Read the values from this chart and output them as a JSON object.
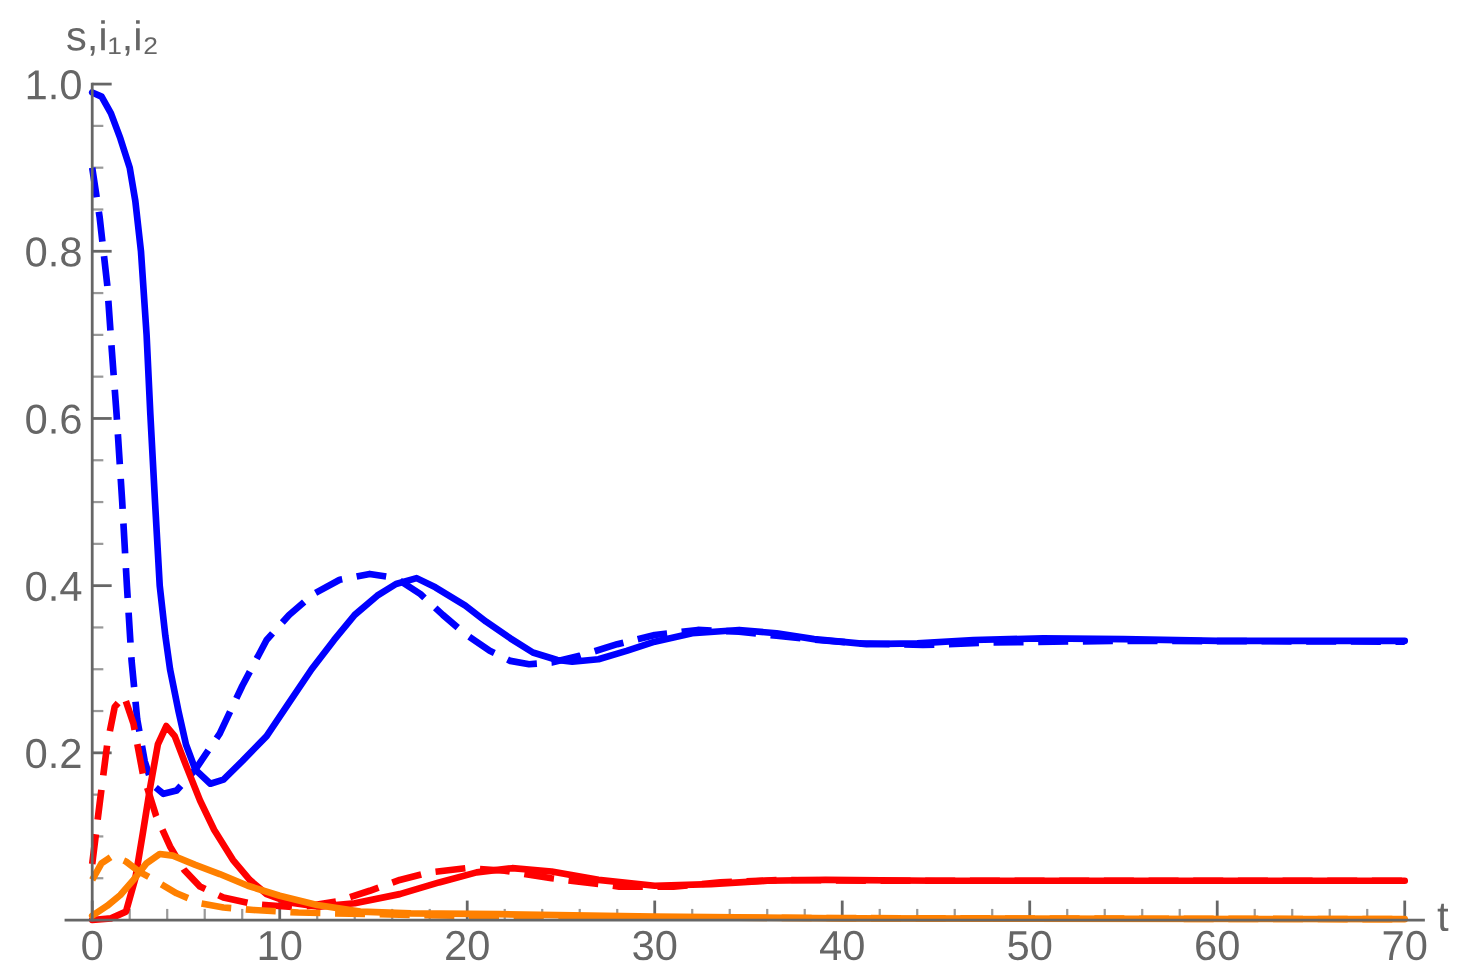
{
  "chart_data": {
    "type": "line",
    "xlabel": "t",
    "ylabel": "s,i₁,i₂",
    "xlim": [
      -1.4,
      71
    ],
    "ylim": [
      0,
      1.0
    ],
    "xticks": [
      0,
      10,
      20,
      30,
      40,
      50,
      60,
      70,
      {
        "value": 2,
        "label": null
      },
      {
        "value": 4,
        "label": null
      },
      {
        "value": 6,
        "label": null
      },
      {
        "value": 8,
        "label": null
      },
      {
        "value": 12,
        "label": null
      },
      {
        "value": 14,
        "label": null
      },
      {
        "value": 16,
        "label": null
      },
      {
        "value": 18,
        "label": null
      },
      {
        "value": 22,
        "label": null
      },
      {
        "value": 24,
        "label": null
      },
      {
        "value": 26,
        "label": null
      },
      {
        "value": 28,
        "label": null
      },
      {
        "value": 32,
        "label": null
      },
      {
        "value": 34,
        "label": null
      },
      {
        "value": 36,
        "label": null
      },
      {
        "value": 38,
        "label": null
      },
      {
        "value": 42,
        "label": null
      },
      {
        "value": 44,
        "label": null
      },
      {
        "value": 46,
        "label": null
      },
      {
        "value": 48,
        "label": null
      },
      {
        "value": 52,
        "label": null
      },
      {
        "value": 54,
        "label": null
      },
      {
        "value": 56,
        "label": null
      },
      {
        "value": 58,
        "label": null
      },
      {
        "value": 62,
        "label": null
      },
      {
        "value": 64,
        "label": null
      },
      {
        "value": 66,
        "label": null
      },
      {
        "value": 68,
        "label": null
      }
    ],
    "yticks": [
      0.2,
      0.4,
      0.6,
      0.8,
      {
        "value": 1.0,
        "label": "1.0"
      },
      {
        "value": 0.05,
        "label": null
      },
      {
        "value": 0.1,
        "label": null
      },
      {
        "value": 0.15,
        "label": null
      },
      {
        "value": 0.25,
        "label": null
      },
      {
        "value": 0.3,
        "label": null
      },
      {
        "value": 0.35,
        "label": null
      },
      {
        "value": 0.45,
        "label": null
      },
      {
        "value": 0.5,
        "label": null
      },
      {
        "value": 0.55,
        "label": null
      },
      {
        "value": 0.65,
        "label": null
      },
      {
        "value": 0.7,
        "label": null
      },
      {
        "value": 0.75,
        "label": null
      },
      {
        "value": 0.85,
        "label": null
      },
      {
        "value": 0.9,
        "label": null
      },
      {
        "value": 0.95,
        "label": null
      }
    ],
    "grid": false,
    "legend": false,
    "marker": "none",
    "series": [
      {
        "color": "#0000ff",
        "line_style": "solid",
        "x": [
          0,
          0.5,
          1,
          1.5,
          2,
          2.3,
          2.6,
          2.9,
          3.1,
          3.35,
          3.6,
          3.9,
          4.15,
          4.6,
          5.0,
          5.5,
          6.3,
          7,
          8,
          9.3,
          10.5,
          11.7,
          12.9,
          14,
          15.2,
          16.2,
          17.3,
          18.3,
          19.9,
          21,
          22.3,
          23.5,
          24.8,
          25.6,
          27,
          28.5,
          30,
          32,
          34.5,
          36.5,
          38.5,
          41.3,
          44,
          47,
          50.7,
          55,
          60,
          70
        ],
        "values": [
          0.99,
          0.985,
          0.965,
          0.935,
          0.9,
          0.86,
          0.8,
          0.7,
          0.605,
          0.5,
          0.4,
          0.34,
          0.3,
          0.25,
          0.21,
          0.18,
          0.163,
          0.168,
          0.19,
          0.22,
          0.26,
          0.3,
          0.335,
          0.365,
          0.388,
          0.402,
          0.409,
          0.398,
          0.376,
          0.357,
          0.337,
          0.32,
          0.311,
          0.309,
          0.312,
          0.322,
          0.333,
          0.343,
          0.347,
          0.343,
          0.336,
          0.33,
          0.331,
          0.335,
          0.337,
          0.336,
          0.334,
          0.334
        ]
      },
      {
        "color": "#0000ff",
        "line_style": "dashed",
        "x": [
          0,
          0.4,
          0.8,
          1.05,
          1.3,
          1.6,
          1.85,
          2.1,
          2.4,
          2.8,
          3.2,
          3.8,
          4.5,
          5.5,
          6.8,
          8,
          9.3,
          10.5,
          11.8,
          13.2,
          14.8,
          16.2,
          17.5,
          18.7,
          19.9,
          21.2,
          22.3,
          23.3,
          24.5,
          26,
          28,
          30,
          32.3,
          34.5,
          36.5,
          38.7,
          41,
          44.3,
          48,
          55,
          70
        ],
        "values": [
          0.9,
          0.84,
          0.76,
          0.68,
          0.605,
          0.5,
          0.4,
          0.31,
          0.24,
          0.19,
          0.162,
          0.151,
          0.155,
          0.18,
          0.223,
          0.28,
          0.335,
          0.365,
          0.39,
          0.407,
          0.414,
          0.409,
          0.39,
          0.365,
          0.342,
          0.322,
          0.31,
          0.306,
          0.308,
          0.316,
          0.33,
          0.341,
          0.347,
          0.345,
          0.34,
          0.335,
          0.331,
          0.329,
          0.332,
          0.334,
          0.333
        ]
      },
      {
        "color": "#ff0000",
        "line_style": "solid",
        "x": [
          0,
          1,
          1.8,
          2.3,
          2.7,
          3.1,
          3.5,
          3.95,
          4.4,
          5,
          5.75,
          6.5,
          7.5,
          8.4,
          9.3,
          10.5,
          12.1,
          14,
          16.4,
          18.5,
          20.5,
          22.4,
          24.5,
          27,
          30,
          33,
          36,
          39.1,
          45,
          55,
          70
        ],
        "values": [
          0.0,
          0.002,
          0.01,
          0.05,
          0.104,
          0.16,
          0.21,
          0.232,
          0.22,
          0.185,
          0.143,
          0.108,
          0.072,
          0.048,
          0.031,
          0.021,
          0.016,
          0.02,
          0.031,
          0.045,
          0.057,
          0.062,
          0.058,
          0.048,
          0.041,
          0.043,
          0.047,
          0.048,
          0.047,
          0.047,
          0.047
        ]
      },
      {
        "color": "#ff0000",
        "line_style": "dashed",
        "x": [
          0,
          0.4,
          0.8,
          1.2,
          1.7,
          2.2,
          2.7,
          3.4,
          4.15,
          4.9,
          5.75,
          7,
          8.6,
          11,
          13,
          14.8,
          16.4,
          18,
          19.9,
          22,
          24.5,
          28.1,
          31,
          33.5,
          36.9,
          42,
          50,
          70
        ],
        "values": [
          0.067,
          0.14,
          0.21,
          0.255,
          0.268,
          0.235,
          0.175,
          0.125,
          0.088,
          0.06,
          0.04,
          0.027,
          0.019,
          0.015,
          0.022,
          0.035,
          0.048,
          0.057,
          0.062,
          0.059,
          0.05,
          0.04,
          0.04,
          0.045,
          0.048,
          0.047,
          0.047,
          0.047
        ]
      },
      {
        "color": "#ff8000",
        "line_style": "solid",
        "x": [
          0,
          0.8,
          1.5,
          2.2,
          2.9,
          3.6,
          4.3,
          5.5,
          6.8,
          8.3,
          10,
          12,
          14.3,
          17,
          21.7,
          30,
          40,
          70
        ],
        "values": [
          0.005,
          0.017,
          0.03,
          0.048,
          0.068,
          0.079,
          0.077,
          0.066,
          0.055,
          0.041,
          0.029,
          0.018,
          0.01,
          0.008,
          0.007,
          0.004,
          0.002,
          0.001
        ]
      },
      {
        "color": "#ff8000",
        "line_style": "dashed",
        "x": [
          0,
          0.5,
          1.1,
          1.8,
          2.5,
          3.3,
          4.5,
          5.75,
          7,
          8.6,
          11,
          15,
          20,
          30,
          45,
          70
        ],
        "values": [
          0.048,
          0.068,
          0.077,
          0.07,
          0.058,
          0.048,
          0.032,
          0.02,
          0.015,
          0.012,
          0.009,
          0.007,
          0.005,
          0.003,
          0.002,
          0.001
        ]
      }
    ]
  }
}
